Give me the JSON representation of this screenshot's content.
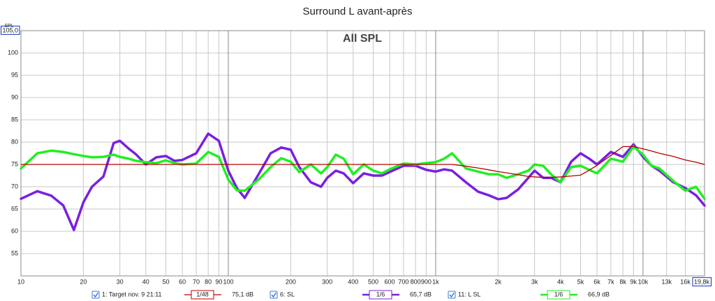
{
  "chart_data": {
    "type": "line",
    "title": "Surround L avant-après",
    "subtitle": "All SPL",
    "y_label": "SPL",
    "log_x": true,
    "grid": true,
    "xlim": [
      10,
      19800
    ],
    "ylim": [
      50,
      105
    ],
    "xticks": [
      10,
      20,
      30,
      40,
      50,
      60,
      70,
      80,
      90,
      100,
      200,
      300,
      400,
      500,
      600,
      700,
      800,
      900,
      {
        "value": 1000,
        "label": "1k"
      },
      {
        "value": 2000,
        "label": "2k"
      },
      {
        "value": 3000,
        "label": "3k"
      },
      {
        "value": 4000,
        "label": "4k"
      },
      {
        "value": 5000,
        "label": "5k"
      },
      {
        "value": 6000,
        "label": "6k"
      },
      {
        "value": 7000,
        "label": "7k"
      },
      {
        "value": 8000,
        "label": "8k"
      },
      {
        "value": 9000,
        "label": "9k"
      },
      {
        "value": 10000,
        "label": "10k"
      },
      {
        "value": 13000,
        "label": "13k"
      },
      {
        "value": 16000,
        "label": "16k"
      },
      {
        "value": 19800,
        "label": "19,8k"
      }
    ],
    "yticks": [
      55,
      60,
      65,
      70,
      75,
      80,
      85,
      90,
      95,
      100,
      {
        "value": 105,
        "label": "105,0"
      }
    ],
    "x": [
      10,
      12,
      14,
      16,
      18,
      20,
      22,
      25,
      28,
      30,
      33,
      36,
      40,
      45,
      50,
      55,
      60,
      70,
      80,
      90,
      100,
      110,
      120,
      140,
      160,
      180,
      200,
      220,
      250,
      280,
      300,
      330,
      360,
      400,
      450,
      500,
      550,
      600,
      700,
      800,
      900,
      1000,
      1100,
      1200,
      1400,
      1600,
      1800,
      2000,
      2200,
      2500,
      2800,
      3000,
      3300,
      3600,
      4000,
      4500,
      5000,
      5500,
      6000,
      7000,
      8000,
      9000,
      10000,
      11000,
      12000,
      14000,
      16000,
      18000,
      19800
    ],
    "series": [
      {
        "name": "1: Target nov. 9 21:11",
        "color": "#b40000",
        "width": 1.3,
        "smoothing": "1/48",
        "level": "75,1 dB",
        "values": [
          75,
          75,
          75,
          75,
          75,
          75,
          75,
          75,
          75,
          75,
          75,
          75,
          75,
          75,
          75,
          75,
          75,
          75,
          75,
          75,
          75,
          75,
          75,
          75,
          75,
          75,
          75,
          75,
          75,
          75,
          75,
          75,
          75,
          75,
          75,
          75,
          75,
          75,
          75,
          75,
          75,
          75,
          75,
          75,
          74.6,
          74.2,
          73.8,
          73.4,
          73.1,
          72.7,
          72.3,
          72.2,
          72.1,
          72.1,
          72.2,
          72.4,
          72.6,
          73.7,
          74.8,
          77,
          79,
          79,
          78.5,
          78,
          77.5,
          76.8,
          76,
          75.5,
          75
        ]
      },
      {
        "name": "6: SL",
        "color": "#7a1fe0",
        "width": 3.5,
        "smoothing": "1/6",
        "level": "65,7 dB",
        "values": [
          67.3,
          69,
          68,
          65.8,
          60.3,
          66.5,
          70,
          72.3,
          79.8,
          80.3,
          78.6,
          77.2,
          75,
          76.6,
          76.9,
          75.8,
          76,
          77.5,
          81.9,
          80.3,
          73.6,
          69.7,
          67.5,
          72.8,
          77.5,
          78.8,
          78.3,
          74.4,
          71,
          70,
          72,
          73.6,
          73,
          70.8,
          73,
          72.5,
          72.5,
          73.3,
          74.7,
          74.7,
          73.8,
          73.4,
          73.9,
          73.6,
          71,
          68.9,
          68.1,
          67.2,
          67.5,
          69.4,
          72,
          73.6,
          72,
          72,
          71,
          75.6,
          77.5,
          76.3,
          75,
          77.8,
          76.7,
          79.5,
          76.7,
          74.7,
          73.6,
          71,
          69.7,
          68.1,
          65.8
        ]
      },
      {
        "name": "11: L SL",
        "color": "#22ee22",
        "width": 3.5,
        "smoothing": "1/6",
        "level": "66,9 dB",
        "values": [
          74.1,
          77.5,
          78.1,
          77.8,
          77.3,
          76.9,
          76.6,
          76.7,
          77.2,
          76.7,
          76.3,
          75.8,
          75.5,
          75.3,
          75.9,
          75.3,
          75,
          75.2,
          77.8,
          76.7,
          71.6,
          69.2,
          69.1,
          71.6,
          74.4,
          76.4,
          75.6,
          73.3,
          75,
          73,
          74.4,
          77.2,
          76.3,
          72.8,
          75,
          73.6,
          73,
          73.9,
          75.2,
          75,
          75.3,
          75.5,
          76.3,
          77.5,
          74.1,
          73.4,
          72.8,
          72.8,
          72,
          72.8,
          73.6,
          75,
          74.7,
          72.8,
          71,
          74.4,
          74.7,
          73.8,
          73,
          76.3,
          75.6,
          79,
          77.2,
          74.7,
          74.1,
          71.3,
          69.1,
          70,
          67.3
        ]
      }
    ]
  }
}
